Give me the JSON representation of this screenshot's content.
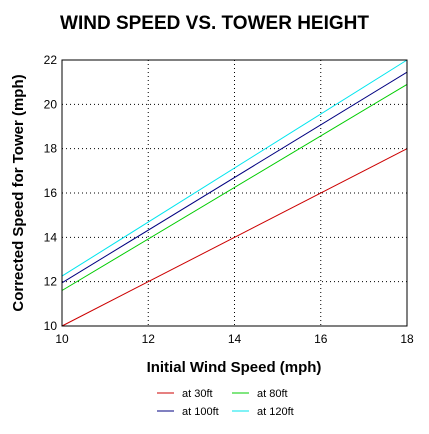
{
  "chart_data": {
    "type": "line",
    "title": "WIND SPEED VS. TOWER HEIGHT",
    "xlabel": "Initial Wind Speed (mph)",
    "ylabel": "Corrected Speed for Tower (mph)",
    "xlim": [
      10,
      18
    ],
    "ylim": [
      10,
      22
    ],
    "xticks": [
      10,
      12,
      14,
      16,
      18
    ],
    "yticks": [
      10,
      12,
      14,
      16,
      18,
      20,
      22
    ],
    "grid": true,
    "legend_position": "bottom",
    "series": [
      {
        "name": "at 30ft",
        "color": "#cc0000",
        "x": [
          10,
          18
        ],
        "y": [
          10.0,
          18.0
        ]
      },
      {
        "name": "at 80ft",
        "color": "#00cc00",
        "x": [
          10,
          18
        ],
        "y": [
          11.6,
          20.9
        ]
      },
      {
        "name": "at 100ft",
        "color": "#000080",
        "x": [
          10,
          18
        ],
        "y": [
          11.95,
          21.45
        ]
      },
      {
        "name": "at 120ft",
        "color": "#00e5ee",
        "x": [
          10,
          18
        ],
        "y": [
          12.25,
          22.0
        ]
      }
    ]
  }
}
